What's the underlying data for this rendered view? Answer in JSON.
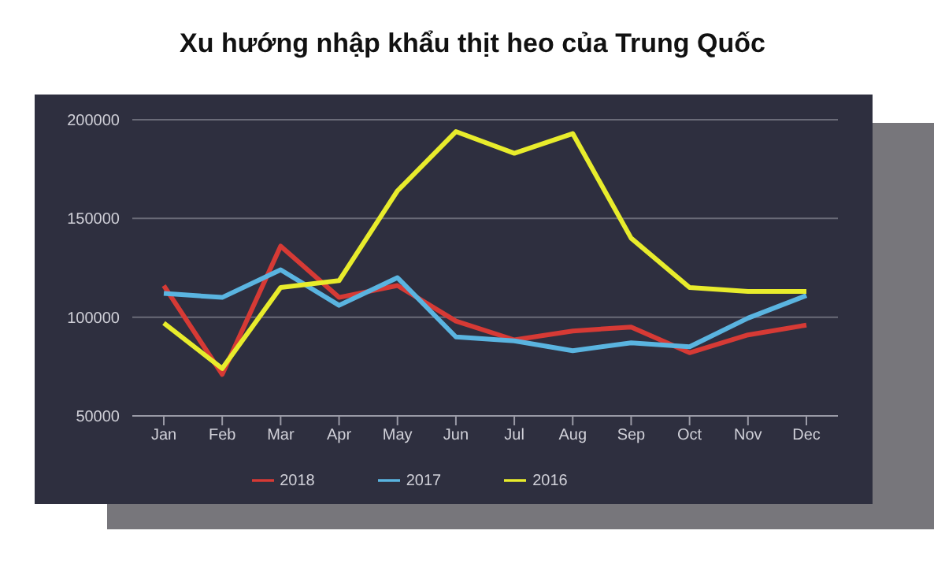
{
  "chart_data": {
    "type": "line",
    "title": "Xu hướng nhập khẩu thịt heo của Trung Quốc",
    "categories": [
      "Jan",
      "Feb",
      "Mar",
      "Apr",
      "May",
      "Jun",
      "Jul",
      "Aug",
      "Sep",
      "Oct",
      "Nov",
      "Dec"
    ],
    "series": [
      {
        "name": "2018",
        "color": "#d63a35",
        "values": [
          116000,
          71000,
          136000,
          110000,
          116000,
          98000,
          88500,
          93000,
          95000,
          82000,
          91000,
          96000
        ]
      },
      {
        "name": "2017",
        "color": "#5ab4e0",
        "values": [
          112000,
          110000,
          124000,
          106000,
          120000,
          90000,
          88000,
          83000,
          87000,
          85000,
          99500,
          111000
        ]
      },
      {
        "name": "2016",
        "color": "#e8ec2c",
        "values": [
          97000,
          74000,
          115000,
          118500,
          164000,
          194000,
          183000,
          193000,
          140000,
          115000,
          113000,
          113000
        ]
      }
    ],
    "ylim": [
      50000,
      200000
    ],
    "yticks": [
      50000,
      100000,
      150000,
      200000
    ],
    "grid": "y",
    "legend": "bottom",
    "marker": "none",
    "line_style": "solid"
  }
}
